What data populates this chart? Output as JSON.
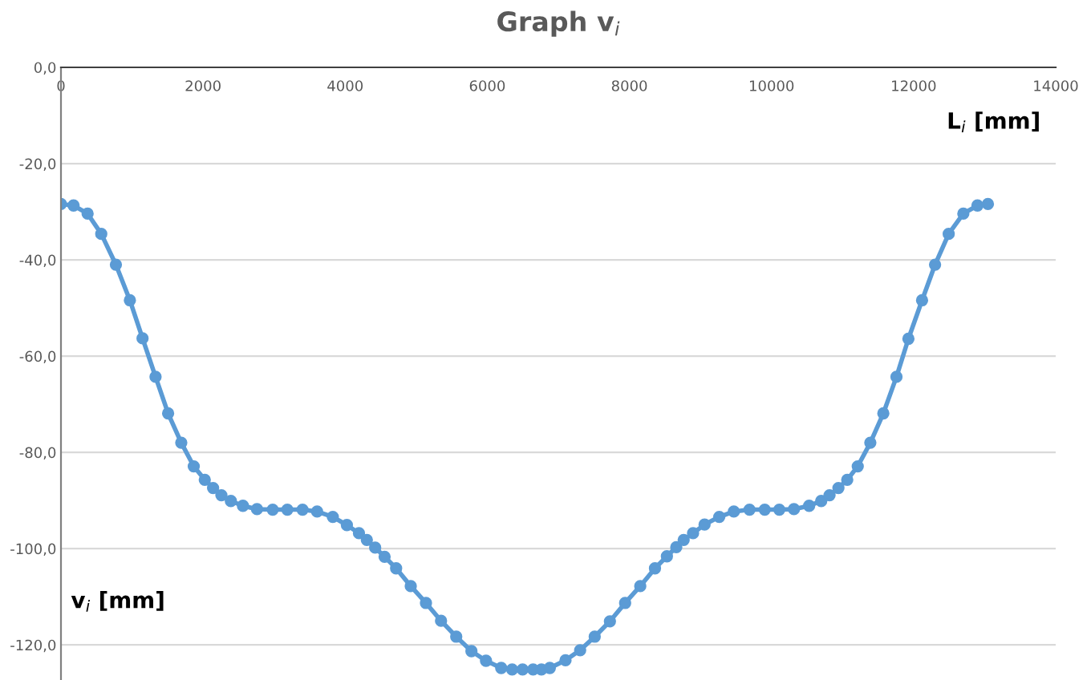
{
  "chart_data": {
    "type": "line",
    "title": "Graph v$_{i}$",
    "xlabel": "L$_{i}$ [mm]",
    "ylabel": "v$_{i}$ [mm]",
    "x": [
      0,
      177,
      375,
      567,
      773,
      970,
      1148,
      1331,
      1508,
      1693,
      1869,
      2024,
      2141,
      2258,
      2391,
      2561,
      2759,
      2980,
      3186,
      3400,
      3605,
      3826,
      4024,
      4194,
      4305,
      4422,
      4555,
      4717,
      4923,
      5137,
      5349,
      5563,
      5777,
      5982,
      6196,
      6350,
      6497,
      6645,
      6762,
      6880,
      7101,
      7307,
      7512,
      7726,
      7940,
      8153,
      8360,
      8528,
      8660,
      8764,
      8896,
      9058,
      9265,
      9470,
      9691,
      9905,
      10110,
      10316,
      10530,
      10700,
      10817,
      10942,
      11066,
      11214,
      11391,
      11574,
      11759,
      11927,
      12119,
      12302,
      12494,
      12700,
      12899,
      13046
    ],
    "series": [
      {
        "color": "#5b9bd5",
        "values": [
          -28.4,
          -28.7,
          -30.4,
          -34.6,
          -41.0,
          -48.4,
          -56.3,
          -64.3,
          -71.9,
          -78.0,
          -82.9,
          -85.7,
          -87.4,
          -88.9,
          -90.1,
          -91.1,
          -91.8,
          -91.9,
          -91.9,
          -91.9,
          -92.3,
          -93.4,
          -95.1,
          -96.8,
          -98.2,
          -99.8,
          -101.7,
          -104.1,
          -107.8,
          -111.3,
          -115.0,
          -118.3,
          -121.3,
          -123.3,
          -124.8,
          -125.1,
          -125.1,
          -125.1,
          -125.1,
          -124.8,
          -123.2,
          -121.1,
          -118.3,
          -115.1,
          -111.3,
          -107.8,
          -104.1,
          -101.6,
          -99.7,
          -98.2,
          -96.8,
          -95.0,
          -93.4,
          -92.3,
          -91.9,
          -91.9,
          -91.9,
          -91.8,
          -91.1,
          -90.1,
          -88.9,
          -87.4,
          -85.7,
          -82.9,
          -78.0,
          -71.9,
          -64.3,
          -56.4,
          -48.4,
          -41.0,
          -34.6,
          -30.4,
          -28.7,
          -28.4
        ]
      }
    ],
    "xlim": [
      0,
      14000
    ],
    "xticks": [
      0,
      2000,
      4000,
      6000,
      8000,
      10000,
      12000,
      14000
    ],
    "ylim": [
      -127.3,
      0
    ],
    "yticks": [
      {
        "value": 0,
        "label": "0,0"
      },
      {
        "value": -20,
        "label": "-20,0"
      },
      {
        "value": -40,
        "label": "-40,0"
      },
      {
        "value": -60,
        "label": "-60,0"
      },
      {
        "value": -80,
        "label": "-80,0"
      },
      {
        "value": -100,
        "label": "-100,0"
      },
      {
        "value": -120,
        "label": "-120,0"
      }
    ],
    "grid": "y",
    "marker": "circle",
    "line_style": "solid",
    "legend": false
  }
}
